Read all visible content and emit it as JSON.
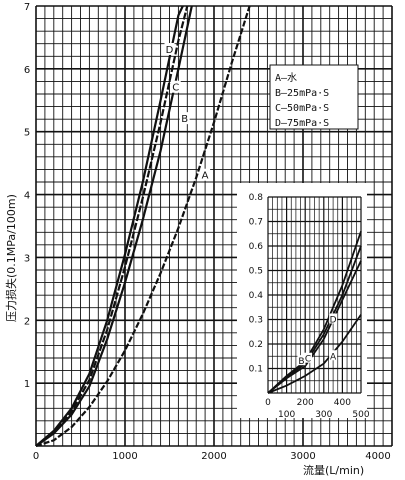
{
  "chart_data": [
    {
      "type": "line",
      "title": "",
      "xlabel": "流量(L/min)",
      "ylabel": "压力损失(0.1MPa/100m)",
      "xlim": [
        0,
        4000
      ],
      "ylim": [
        0,
        7
      ],
      "x_ticks": [
        "0",
        "1000",
        "2000",
        "3000",
        "4000"
      ],
      "y_ticks": [
        "1",
        "2",
        "3",
        "4",
        "5",
        "6",
        "7"
      ],
      "grid": true,
      "legend": {
        "placement": "top-right",
        "entries": [
          "A—水",
          "B—25mPa·S",
          "C—50mPa·S",
          "D—75mPa·S"
        ]
      },
      "series": [
        {
          "name": "A",
          "x": [
            0,
            200,
            400,
            600,
            800,
            1000,
            1200,
            1400,
            1600,
            1800,
            2000,
            2200,
            2400
          ],
          "y": [
            0,
            0.09,
            0.3,
            0.62,
            1.03,
            1.52,
            2.1,
            2.75,
            3.47,
            4.27,
            5.15,
            6.1,
            7.0
          ]
        },
        {
          "name": "B",
          "x": [
            0,
            200,
            400,
            600,
            800,
            1000,
            1200,
            1400,
            1600,
            1750
          ],
          "y": [
            0,
            0.2,
            0.5,
            0.95,
            1.7,
            2.6,
            3.6,
            4.7,
            6.0,
            7.0
          ]
        },
        {
          "name": "C",
          "x": [
            0,
            200,
            400,
            600,
            800,
            1000,
            1200,
            1400,
            1600,
            1700
          ],
          "y": [
            0,
            0.22,
            0.55,
            1.05,
            1.85,
            2.85,
            3.95,
            5.15,
            6.45,
            7.0
          ]
        },
        {
          "name": "D",
          "x": [
            0,
            200,
            400,
            600,
            800,
            1000,
            1200,
            1400,
            1600,
            1650
          ],
          "y": [
            0,
            0.24,
            0.6,
            1.15,
            2.0,
            3.05,
            4.2,
            5.5,
            6.85,
            7.0
          ]
        }
      ],
      "point_labels": [
        {
          "text": "A",
          "x": 1900,
          "y": 4.3
        },
        {
          "text": "B",
          "x": 1670,
          "y": 5.2
        },
        {
          "text": "C",
          "x": 1570,
          "y": 5.7
        },
        {
          "text": "D",
          "x": 1500,
          "y": 6.3
        }
      ]
    },
    {
      "type": "line",
      "title": "",
      "xlabel": "",
      "ylabel": "",
      "xlim": [
        0,
        500
      ],
      "ylim": [
        0,
        0.8
      ],
      "x_ticks": [
        "0",
        "100",
        "200",
        "300",
        "400",
        "500"
      ],
      "y_ticks": [
        "0.1",
        "0.2",
        "0.3",
        "0.4",
        "0.5",
        "0.6",
        "0.7",
        "0.8"
      ],
      "grid": true,
      "series": [
        {
          "name": "A",
          "x": [
            0,
            100,
            200,
            300,
            400,
            500
          ],
          "y": [
            0,
            0.03,
            0.07,
            0.12,
            0.21,
            0.32
          ]
        },
        {
          "name": "B",
          "x": [
            0,
            100,
            200,
            300,
            400,
            500
          ],
          "y": [
            0,
            0.06,
            0.11,
            0.22,
            0.38,
            0.54
          ]
        },
        {
          "name": "C",
          "x": [
            0,
            100,
            200,
            300,
            400,
            500
          ],
          "y": [
            0,
            0.065,
            0.12,
            0.24,
            0.4,
            0.6
          ]
        },
        {
          "name": "D",
          "x": [
            0,
            100,
            200,
            300,
            400,
            500
          ],
          "y": [
            0,
            0.07,
            0.13,
            0.26,
            0.44,
            0.66
          ]
        }
      ],
      "point_labels": [
        {
          "text": "A",
          "x": 350,
          "y": 0.15
        },
        {
          "text": "B",
          "x": 180,
          "y": 0.13
        },
        {
          "text": "C",
          "x": 215,
          "y": 0.14
        },
        {
          "text": "D",
          "x": 350,
          "y": 0.3
        }
      ]
    }
  ]
}
